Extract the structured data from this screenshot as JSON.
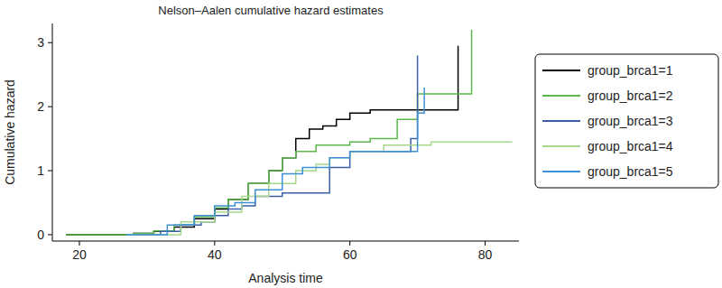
{
  "chart_data": {
    "type": "line",
    "title": "Nelson–Aalen cumulative hazard estimates",
    "x_label": "Analysis time",
    "y_label": "Cumulative hazard",
    "xlim": [
      16,
      85
    ],
    "xticks": [
      20,
      40,
      60,
      80
    ],
    "ylim": [
      -0.1,
      3.3
    ],
    "yticks": [
      0,
      1,
      2,
      3
    ],
    "grid": false,
    "legend": "right",
    "line_style": "step",
    "series": [
      {
        "name": "group_brca1=1",
        "color": "#000000",
        "x": [
          18,
          28,
          31,
          34,
          37,
          40,
          42,
          45,
          48,
          50,
          52,
          54,
          56,
          58,
          60,
          63,
          76,
          76
        ],
        "values": [
          0,
          0.02,
          0.05,
          0.12,
          0.25,
          0.4,
          0.55,
          0.8,
          1.0,
          1.2,
          1.5,
          1.65,
          1.7,
          1.8,
          1.9,
          1.95,
          1.95,
          2.95
        ]
      },
      {
        "name": "group_brca1=2",
        "color": "#5cb84a",
        "x": [
          18,
          28,
          31,
          34,
          37,
          40,
          42,
          45,
          48,
          50,
          52,
          55,
          60,
          63,
          67,
          70,
          78,
          78
        ],
        "values": [
          0,
          0.02,
          0.06,
          0.15,
          0.28,
          0.42,
          0.55,
          0.8,
          1.0,
          1.2,
          1.3,
          1.4,
          1.45,
          1.5,
          1.8,
          2.2,
          2.2,
          3.2
        ]
      },
      {
        "name": "group_brca1=3",
        "color": "#3a5fa8",
        "x": [
          28,
          32,
          35,
          38,
          40,
          42,
          44,
          46,
          50,
          57,
          60,
          69,
          70
        ],
        "values": [
          0,
          0.05,
          0.15,
          0.2,
          0.3,
          0.4,
          0.45,
          0.6,
          0.65,
          1.05,
          1.3,
          1.5,
          2.8
        ]
      },
      {
        "name": "group_brca1=4",
        "color": "#a6d78a",
        "x": [
          27,
          35,
          40,
          44,
          48,
          52,
          55,
          57,
          60,
          65,
          72,
          84
        ],
        "values": [
          0,
          0.2,
          0.35,
          0.6,
          0.8,
          1.0,
          1.1,
          1.2,
          1.3,
          1.4,
          1.45,
          1.45
        ]
      },
      {
        "name": "group_brca1=5",
        "color": "#3d8fd6",
        "x": [
          27,
          33,
          37,
          40,
          43,
          46,
          50,
          53,
          57,
          60,
          70,
          71
        ],
        "values": [
          0,
          0.15,
          0.3,
          0.45,
          0.5,
          0.7,
          0.95,
          1.05,
          1.2,
          1.3,
          1.9,
          2.3
        ]
      }
    ]
  }
}
